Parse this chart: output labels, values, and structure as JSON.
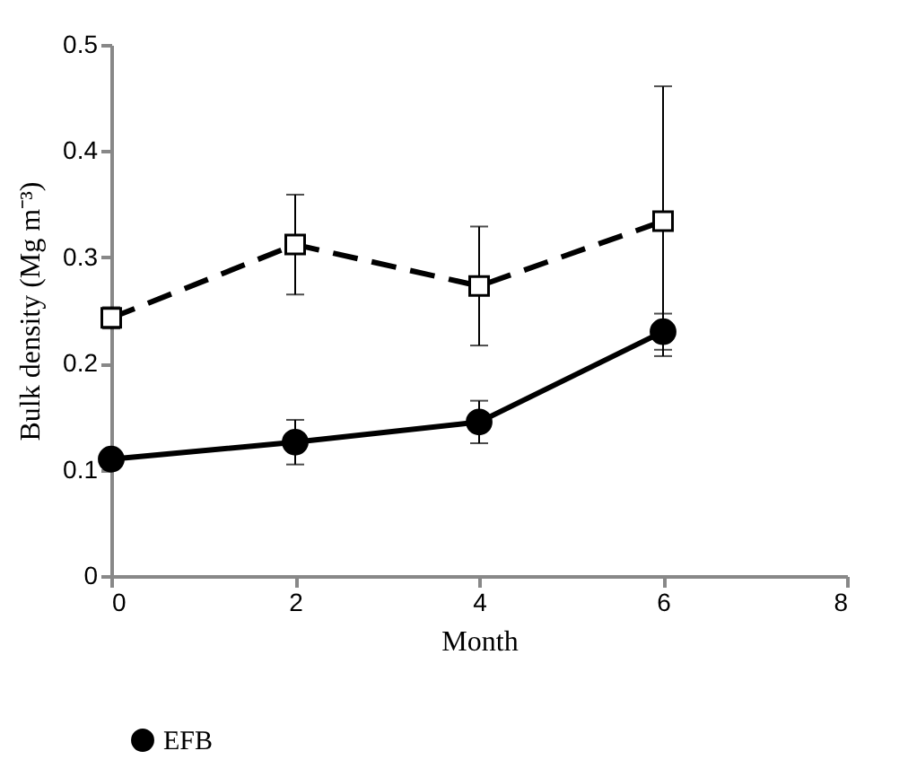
{
  "chart_data": {
    "type": "line",
    "xlabel": "Month",
    "ylabel": "Bulk density (Mg m⁻³)",
    "x": [
      0,
      2,
      4,
      6
    ],
    "series": [
      {
        "name": "EFB",
        "color": "#000000",
        "marker": "circle",
        "line_style": "solid",
        "values": [
          0.11,
          0.126,
          0.145,
          0.23
        ],
        "errors": [
          0.005,
          0.021,
          0.02,
          0.017
        ]
      },
      {
        "color": "#000000",
        "marker": "square",
        "line_style": "dashed",
        "values": [
          0.243,
          0.312,
          0.273,
          0.334
        ],
        "errors": [
          0.01,
          0.047,
          0.056,
          0.127
        ]
      }
    ],
    "xlim": [
      0,
      8
    ],
    "xticks": [
      0,
      2,
      4,
      6,
      8
    ],
    "ylim": [
      0,
      0.5
    ],
    "yticks": [
      0,
      0.1,
      0.2,
      0.3,
      0.4,
      0.5
    ],
    "grid": false,
    "legend": "bottom"
  }
}
